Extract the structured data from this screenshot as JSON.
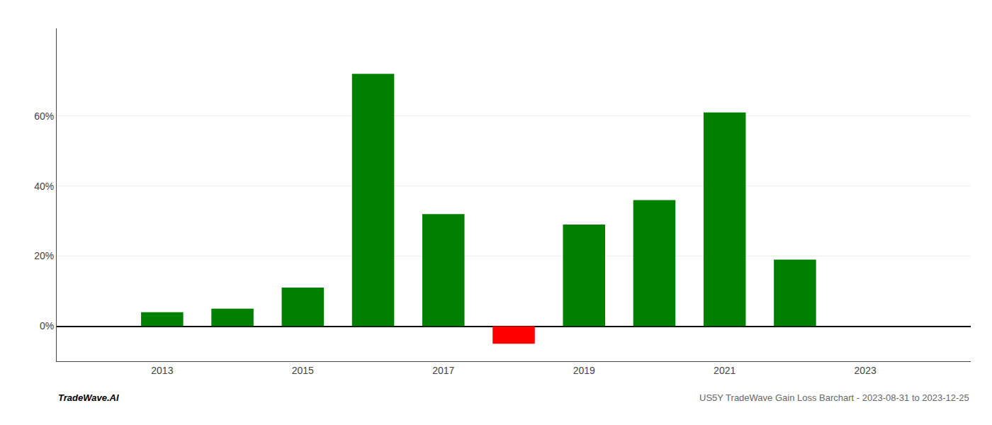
{
  "chart_data": {
    "type": "bar",
    "x": [
      2013,
      2014,
      2015,
      2016,
      2017,
      2018,
      2019,
      2020,
      2021,
      2022
    ],
    "values": [
      0.04,
      0.05,
      0.11,
      0.72,
      0.32,
      -0.05,
      0.29,
      0.36,
      0.61,
      0.19
    ],
    "colors": [
      "#008000",
      "#008000",
      "#008000",
      "#008000",
      "#008000",
      "#ff0000",
      "#008000",
      "#008000",
      "#008000",
      "#008000"
    ],
    "xlim": [
      2011.5,
      2024.5
    ],
    "xticks": [
      2013,
      2015,
      2017,
      2019,
      2021,
      2023
    ],
    "ylim": [
      -0.1,
      0.85
    ],
    "yticks": [
      {
        "value": 0.0,
        "label": "0%"
      },
      {
        "value": 0.2,
        "label": "20%"
      },
      {
        "value": 0.4,
        "label": "40%"
      },
      {
        "value": 0.6,
        "label": "60%"
      }
    ],
    "grid": true,
    "annotations": [
      "TradeWave.AI",
      "US5Y TradeWave Gain Loss Barchart - 2023-08-31 to 2023-12-25"
    ]
  }
}
